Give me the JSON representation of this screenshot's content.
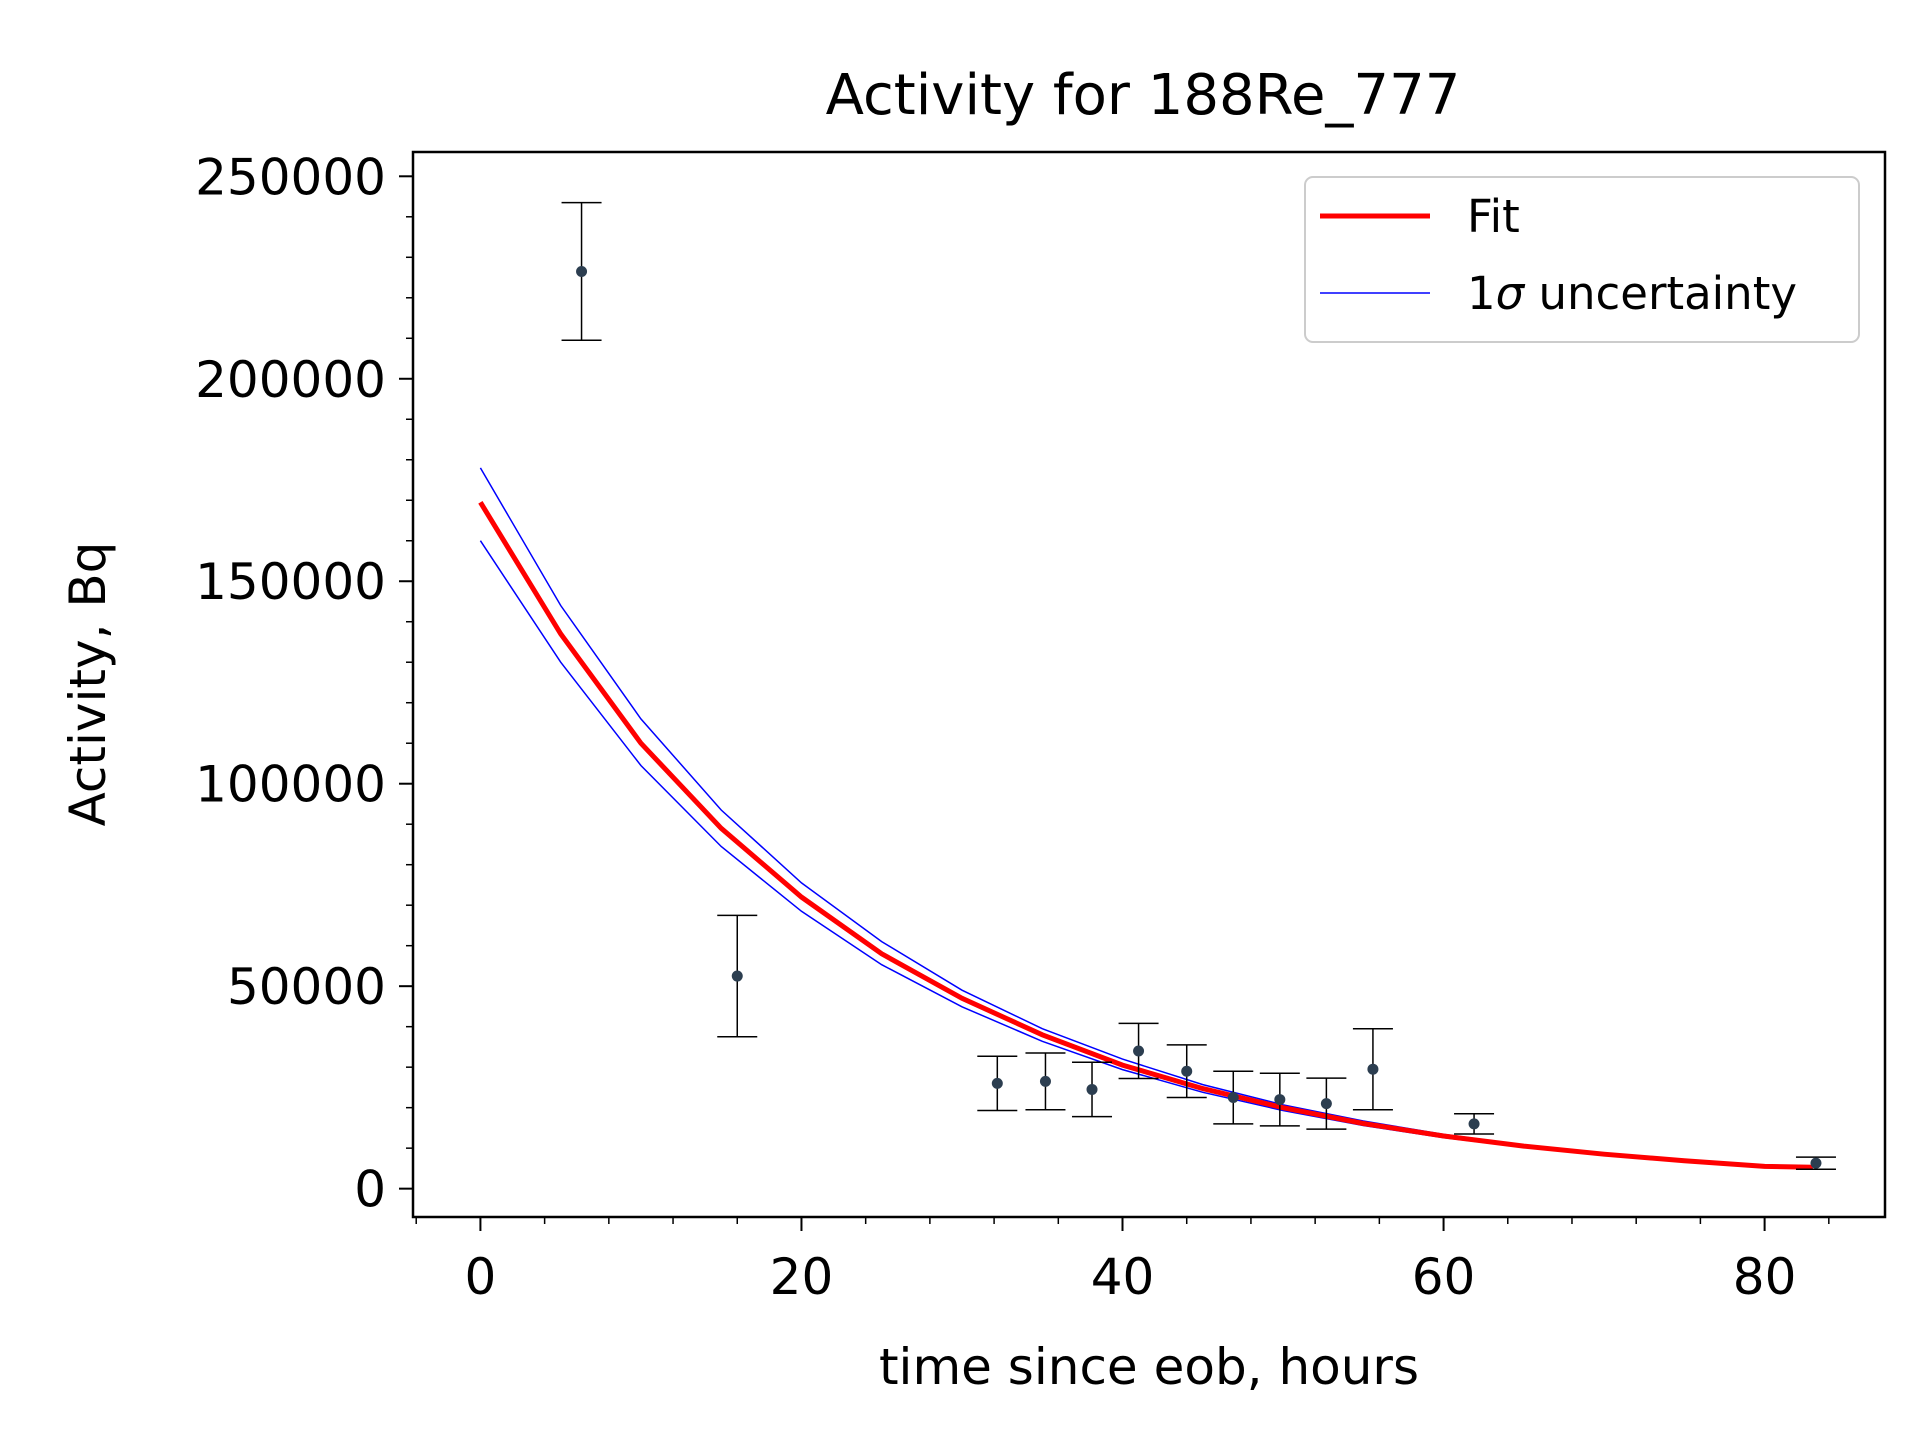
{
  "chart_data": {
    "type": "scatter",
    "title": "Activity for 188Re_777",
    "xlabel": "time since eob, hours",
    "ylabel": "Activity, Bq",
    "xlim": [
      -4.2,
      87.5
    ],
    "ylim": [
      -7000,
      256000
    ],
    "xticks": [
      0,
      20,
      40,
      60,
      80
    ],
    "xticklabels": [
      "0",
      "20",
      "40",
      "60",
      "80"
    ],
    "yticks": [
      0,
      50000,
      100000,
      150000,
      200000,
      250000
    ],
    "yticklabels": [
      "0",
      "50000",
      "100000",
      "150000",
      "200000",
      "250000"
    ],
    "grid": false,
    "legend_position": "top-right",
    "legend": [
      {
        "label": "Fit",
        "color": "#ff0000",
        "style": "thick-line"
      },
      {
        "label_prefix": "1",
        "label_symbol": "σ",
        "label_suffix": " uncertainty",
        "color": "#0000ff",
        "style": "thin-line"
      }
    ],
    "measurements": {
      "color": "#2c3e50",
      "points": [
        {
          "x": 6.3,
          "y": 226500,
          "err": 17000
        },
        {
          "x": 16.0,
          "y": 52500,
          "err": 15000
        },
        {
          "x": 32.2,
          "y": 26000,
          "err": 6700
        },
        {
          "x": 35.2,
          "y": 26500,
          "err": 7000
        },
        {
          "x": 38.1,
          "y": 24500,
          "err": 6700
        },
        {
          "x": 41.0,
          "y": 34000,
          "err": 6800
        },
        {
          "x": 44.0,
          "y": 29000,
          "err": 6500
        },
        {
          "x": 46.9,
          "y": 22500,
          "err": 6500
        },
        {
          "x": 49.8,
          "y": 22000,
          "err": 6500
        },
        {
          "x": 52.7,
          "y": 21000,
          "err": 6300
        },
        {
          "x": 55.6,
          "y": 29500,
          "err": 10000
        },
        {
          "x": 61.9,
          "y": 16000,
          "err": 2500
        },
        {
          "x": 83.2,
          "y": 6300,
          "err": 1500
        }
      ]
    },
    "series": [
      {
        "name": "Fit",
        "color": "#ff0000",
        "x": [
          0,
          5,
          10,
          15,
          20,
          25,
          30,
          35,
          40,
          45,
          50,
          55,
          60,
          65,
          70,
          75,
          80,
          83
        ],
        "y": [
          169500,
          137000,
          110000,
          89000,
          72000,
          58000,
          47000,
          38000,
          30500,
          24700,
          20000,
          16100,
          13000,
          10500,
          8500,
          6900,
          5500,
          5300
        ]
      },
      {
        "name": "1σ uncertainty upper",
        "color": "#0000ff",
        "x": [
          0,
          5,
          10,
          15,
          20,
          25,
          30,
          35,
          40,
          45,
          50,
          55,
          60,
          65,
          70,
          75,
          80,
          83
        ],
        "y": [
          178000,
          144000,
          116000,
          93500,
          75500,
          61000,
          49000,
          39500,
          32000,
          25700,
          20700,
          16700,
          13400,
          10800,
          8700,
          7000,
          5650,
          5400
        ]
      },
      {
        "name": "1σ uncertainty lower",
        "color": "#0000ff",
        "x": [
          0,
          5,
          10,
          15,
          20,
          25,
          30,
          35,
          40,
          45,
          50,
          55,
          60,
          65,
          70,
          75,
          80,
          83
        ],
        "y": [
          160000,
          130000,
          104500,
          84500,
          68500,
          55300,
          44900,
          36400,
          29400,
          23800,
          19300,
          15600,
          12600,
          10200,
          8300,
          6750,
          5400,
          5200
        ]
      }
    ]
  }
}
